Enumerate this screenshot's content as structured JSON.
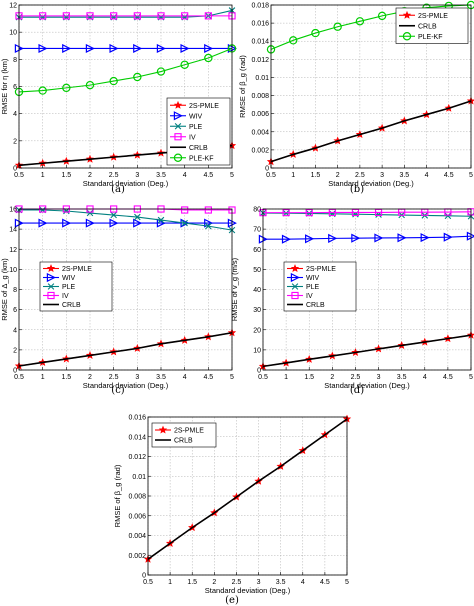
{
  "chart_data": [
    {
      "type": "line",
      "caption": "(a)",
      "xlabel": "Standard deviation (Deg.)",
      "ylabel": "RMSE for η (km)",
      "xlim": [
        0.5,
        5
      ],
      "ylim": [
        0,
        12
      ],
      "xticks": [
        "0.5",
        "1",
        "1.5",
        "2",
        "2.5",
        "3",
        "3.5",
        "4",
        "4.5",
        "5"
      ],
      "yticks": [
        "0",
        "2",
        "4",
        "6",
        "8",
        "10",
        "12"
      ],
      "grid": true,
      "legend_position": "bottom-right",
      "x": [
        0.5,
        1,
        1.5,
        2,
        2.5,
        3,
        3.5,
        4,
        4.5,
        5
      ],
      "series": [
        {
          "name": "2S-PMLE",
          "color": "#ff0000",
          "marker": "star",
          "values": [
            0.2,
            0.35,
            0.5,
            0.65,
            0.8,
            0.95,
            1.1,
            1.25,
            1.45,
            1.65
          ]
        },
        {
          "name": "WIV",
          "color": "#0000ff",
          "marker": "triangle-right",
          "values": [
            8.8,
            8.8,
            8.8,
            8.8,
            8.8,
            8.8,
            8.8,
            8.8,
            8.8,
            8.8
          ]
        },
        {
          "name": "PLE",
          "color": "#008080",
          "marker": "x",
          "values": [
            11.1,
            11.1,
            11.1,
            11.1,
            11.1,
            11.1,
            11.1,
            11.1,
            11.2,
            11.6
          ]
        },
        {
          "name": "IV",
          "color": "#ff00ff",
          "marker": "square",
          "values": [
            11.2,
            11.2,
            11.2,
            11.2,
            11.2,
            11.2,
            11.2,
            11.2,
            11.2,
            11.2
          ]
        },
        {
          "name": "CRLB",
          "color": "#000000",
          "marker": "none",
          "values": [
            0.2,
            0.35,
            0.5,
            0.65,
            0.8,
            0.95,
            1.1,
            1.25,
            1.45,
            1.65
          ]
        },
        {
          "name": "PLE-KF",
          "color": "#00cc00",
          "marker": "circle",
          "values": [
            5.6,
            5.7,
            5.9,
            6.1,
            6.4,
            6.7,
            7.1,
            7.6,
            8.1,
            8.8
          ]
        }
      ]
    },
    {
      "type": "line",
      "caption": "(b)",
      "xlabel": "Standard deviation (Deg.)",
      "ylabel": "RMSE of β_g (rad)",
      "xlim": [
        0.5,
        5
      ],
      "ylim": [
        0,
        0.018
      ],
      "xticks": [
        "0.5",
        "1",
        "1.5",
        "2",
        "2.5",
        "3",
        "3.5",
        "4",
        "4.5",
        "5"
      ],
      "yticks": [
        "0",
        "0.002",
        "0.004",
        "0.006",
        "0.008",
        "0.01",
        "0.012",
        "0.014",
        "0.016",
        "0.018"
      ],
      "grid": true,
      "legend_position": "top-right",
      "x": [
        0.5,
        1,
        1.5,
        2,
        2.5,
        3,
        3.5,
        4,
        4.5,
        5
      ],
      "series": [
        {
          "name": "2S-PMLE",
          "color": "#ff0000",
          "marker": "star",
          "values": [
            0.0007,
            0.0015,
            0.0022,
            0.003,
            0.0037,
            0.0044,
            0.0052,
            0.0059,
            0.0066,
            0.0074
          ]
        },
        {
          "name": "CRLB",
          "color": "#000000",
          "marker": "none",
          "values": [
            0.0007,
            0.0015,
            0.0022,
            0.003,
            0.0037,
            0.0044,
            0.0052,
            0.0059,
            0.0066,
            0.0074
          ]
        },
        {
          "name": "PLE-KF",
          "color": "#00cc00",
          "marker": "circle",
          "values": [
            0.0131,
            0.0141,
            0.0149,
            0.0156,
            0.0162,
            0.0168,
            0.0173,
            0.0177,
            0.0179,
            0.018
          ]
        }
      ]
    },
    {
      "type": "line",
      "caption": "(c)",
      "xlabel": "Standard deviation (Deg.)",
      "ylabel": "RMSE of Δ_g (km)",
      "xlim": [
        0.5,
        5
      ],
      "ylim": [
        0,
        16
      ],
      "xticks": [
        "0.5",
        "1",
        "1.5",
        "2",
        "2.5",
        "3",
        "3.5",
        "4",
        "4.5",
        "5"
      ],
      "yticks": [
        "0",
        "2",
        "4",
        "6",
        "8",
        "10",
        "12",
        "14",
        "16"
      ],
      "grid": true,
      "legend_position": "middle-left",
      "x": [
        0.5,
        1,
        1.5,
        2,
        2.5,
        3,
        3.5,
        4,
        4.5,
        5
      ],
      "series": [
        {
          "name": "2S-PMLE",
          "color": "#ff0000",
          "marker": "star",
          "values": [
            0.4,
            0.75,
            1.1,
            1.45,
            1.8,
            2.15,
            2.6,
            2.95,
            3.3,
            3.7
          ]
        },
        {
          "name": "WIV",
          "color": "#0000ff",
          "marker": "triangle-right",
          "values": [
            14.6,
            14.6,
            14.6,
            14.6,
            14.6,
            14.6,
            14.6,
            14.6,
            14.6,
            14.6
          ]
        },
        {
          "name": "PLE",
          "color": "#008080",
          "marker": "x",
          "values": [
            15.9,
            15.9,
            15.8,
            15.6,
            15.4,
            15.2,
            14.9,
            14.6,
            14.3,
            13.9
          ]
        },
        {
          "name": "IV",
          "color": "#ff00ff",
          "marker": "square",
          "values": [
            16.0,
            16.0,
            16.0,
            16.0,
            16.0,
            16.0,
            16.0,
            15.9,
            15.9,
            15.9
          ]
        },
        {
          "name": "CRLB",
          "color": "#000000",
          "marker": "none",
          "values": [
            0.4,
            0.75,
            1.1,
            1.45,
            1.8,
            2.15,
            2.6,
            2.95,
            3.3,
            3.7
          ]
        }
      ]
    },
    {
      "type": "line",
      "caption": "(d)",
      "xlabel": "Standard deviation (Deg.)",
      "ylabel": "RMSE of v_g (m/s)",
      "xlim": [
        0.5,
        5
      ],
      "ylim": [
        0,
        80
      ],
      "xticks": [
        "0.5",
        "1",
        "1.5",
        "2",
        "2.5",
        "3",
        "3.5",
        "4",
        "4.5",
        "5"
      ],
      "yticks": [
        "0",
        "10",
        "20",
        "30",
        "40",
        "50",
        "60",
        "70",
        "80"
      ],
      "grid": true,
      "legend_position": "middle-left",
      "x": [
        0.5,
        1,
        1.5,
        2,
        2.5,
        3,
        3.5,
        4,
        4.5,
        5
      ],
      "series": [
        {
          "name": "2S-PMLE",
          "color": "#ff0000",
          "marker": "star",
          "values": [
            1.8,
            3.5,
            5.3,
            7.0,
            8.7,
            10.5,
            12.2,
            13.9,
            15.6,
            17.3
          ]
        },
        {
          "name": "WIV",
          "color": "#0000ff",
          "marker": "triangle-right",
          "values": [
            65,
            65,
            65.2,
            65.4,
            65.5,
            65.6,
            65.7,
            65.8,
            66,
            66.5
          ]
        },
        {
          "name": "PLE",
          "color": "#008080",
          "marker": "x",
          "values": [
            78,
            77.9,
            77.8,
            77.6,
            77.4,
            77.2,
            77,
            76.8,
            76.6,
            76.4
          ]
        },
        {
          "name": "IV",
          "color": "#ff00ff",
          "marker": "square",
          "values": [
            78.2,
            78.2,
            78.2,
            78.3,
            78.3,
            78.3,
            78.4,
            78.4,
            78.5,
            78.6
          ]
        },
        {
          "name": "CRLB",
          "color": "#000000",
          "marker": "none",
          "values": [
            1.8,
            3.5,
            5.3,
            7.0,
            8.7,
            10.5,
            12.2,
            13.9,
            15.6,
            17.3
          ]
        }
      ]
    },
    {
      "type": "line",
      "caption": "(e)",
      "xlabel": "Standard deviation (Deg.)",
      "ylabel": "RMSE of β_g (rad)",
      "xlim": [
        0.5,
        5
      ],
      "ylim": [
        0,
        0.016
      ],
      "xticks": [
        "0.5",
        "1",
        "1.5",
        "2",
        "2.5",
        "3",
        "3.5",
        "4",
        "4.5",
        "5"
      ],
      "yticks": [
        "0",
        "0.002",
        "0.004",
        "0.006",
        "0.008",
        "0.01",
        "0.012",
        "0.014",
        "0.016"
      ],
      "grid": true,
      "legend_position": "top-left",
      "x": [
        0.5,
        1,
        1.5,
        2,
        2.5,
        3,
        3.5,
        4,
        4.5,
        5
      ],
      "series": [
        {
          "name": "2S-PMLE",
          "color": "#ff0000",
          "marker": "star",
          "values": [
            0.0016,
            0.0032,
            0.0048,
            0.0063,
            0.0079,
            0.0095,
            0.011,
            0.0126,
            0.0142,
            0.0158
          ]
        },
        {
          "name": "CRLB",
          "color": "#000000",
          "marker": "none",
          "values": [
            0.0016,
            0.0032,
            0.0048,
            0.0063,
            0.0079,
            0.0095,
            0.011,
            0.0126,
            0.0142,
            0.0158
          ]
        }
      ]
    }
  ]
}
